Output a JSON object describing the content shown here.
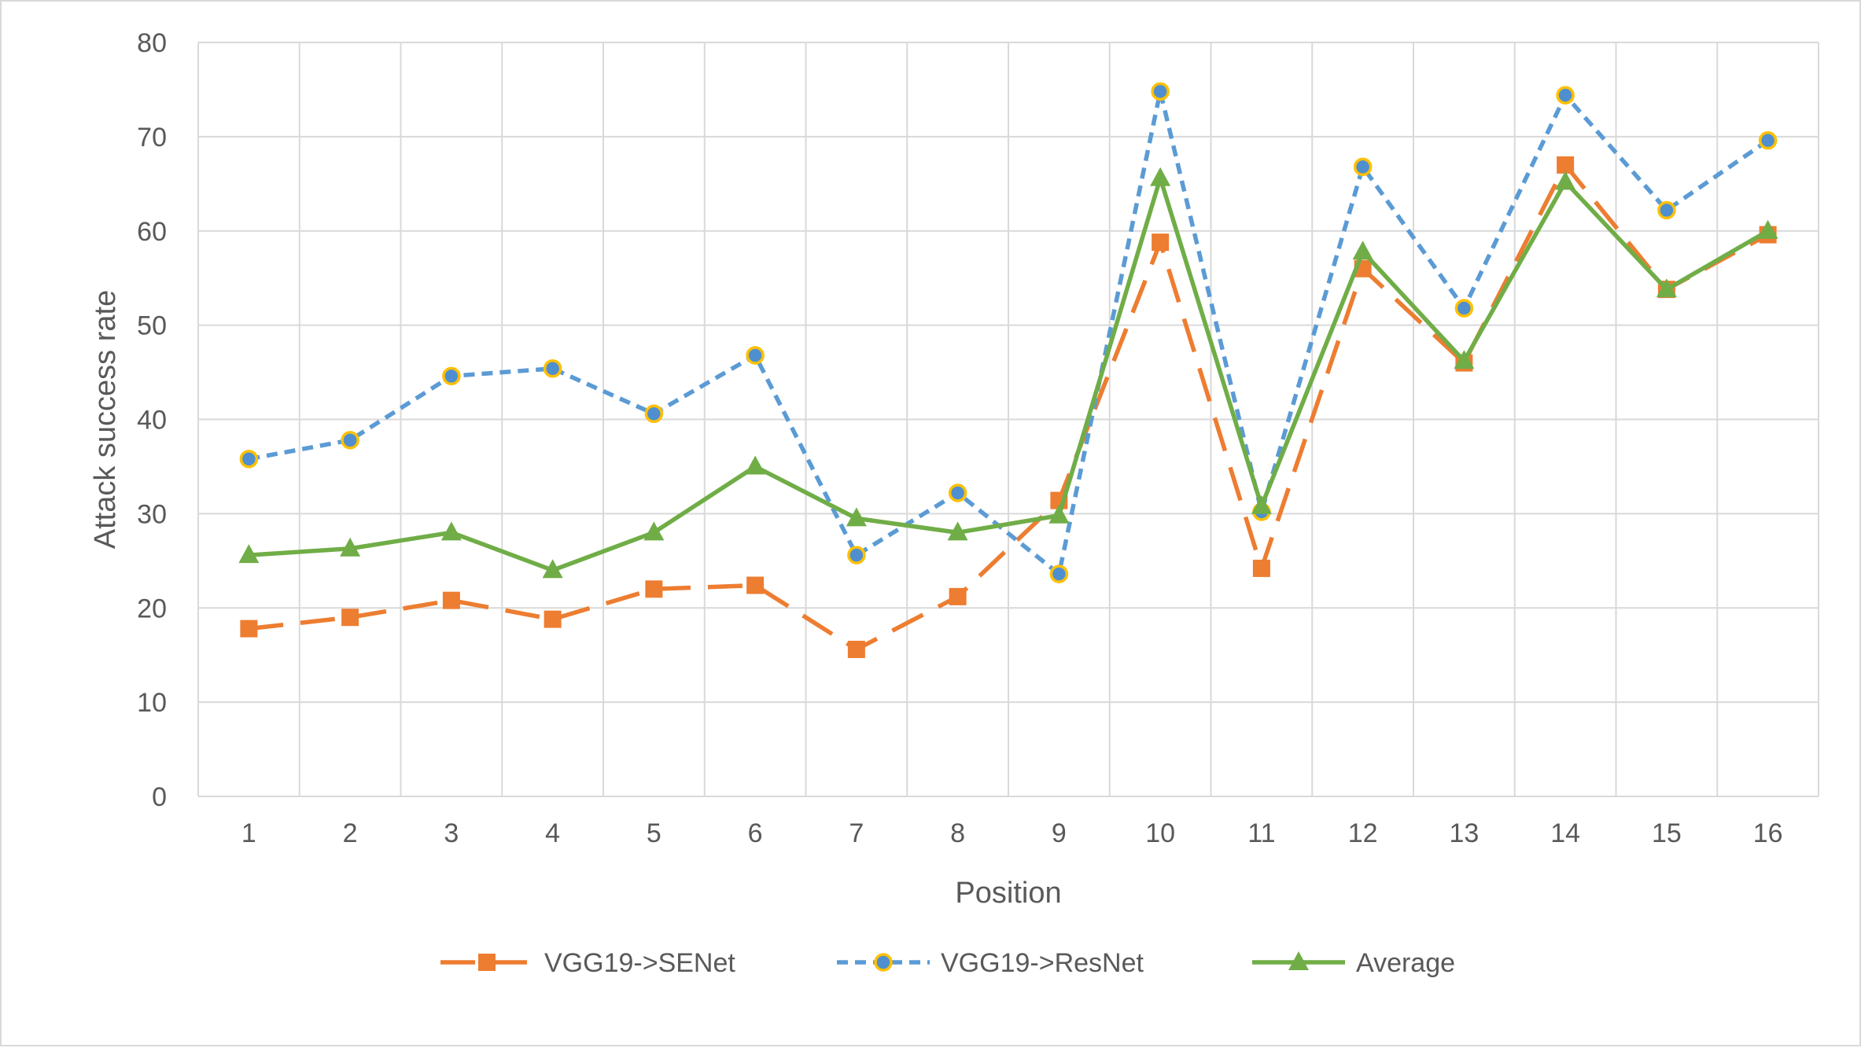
{
  "chart_data": {
    "type": "line",
    "title": "",
    "xlabel": "Position",
    "ylabel": "Attack success rate",
    "categories": [
      "1",
      "2",
      "3",
      "4",
      "5",
      "6",
      "7",
      "8",
      "9",
      "10",
      "11",
      "12",
      "13",
      "14",
      "15",
      "16"
    ],
    "ylim": [
      0,
      80
    ],
    "yticks": [
      0,
      10,
      20,
      30,
      40,
      50,
      60,
      70,
      80
    ],
    "grid": true,
    "legend_position": "bottom",
    "series": [
      {
        "name": "VGG19->SENet",
        "color": "#ED7D31",
        "line_style": "long-dash",
        "marker": "square",
        "values": [
          17.8,
          19.0,
          20.8,
          18.8,
          22.0,
          22.4,
          15.6,
          21.2,
          31.4,
          58.8,
          24.2,
          56.0,
          46.0,
          67.0,
          53.8,
          59.6
        ]
      },
      {
        "name": "VGG19->ResNet",
        "color": "#5B9BD5",
        "marker_fill": "#4F8FD0",
        "marker_edge": "#FFC000",
        "line_style": "short-dash",
        "marker": "circle",
        "values": [
          35.8,
          37.8,
          44.6,
          45.4,
          40.6,
          46.8,
          25.6,
          32.2,
          23.6,
          74.8,
          30.2,
          66.8,
          51.8,
          74.4,
          62.2,
          69.6
        ]
      },
      {
        "name": "Average",
        "color": "#70AD47",
        "line_style": "solid",
        "marker": "triangle",
        "values": [
          25.6,
          26.3,
          28.0,
          24.0,
          28.0,
          35.0,
          29.5,
          28.0,
          29.8,
          65.6,
          30.8,
          57.8,
          46.2,
          65.2,
          53.8,
          60.0
        ]
      }
    ]
  }
}
